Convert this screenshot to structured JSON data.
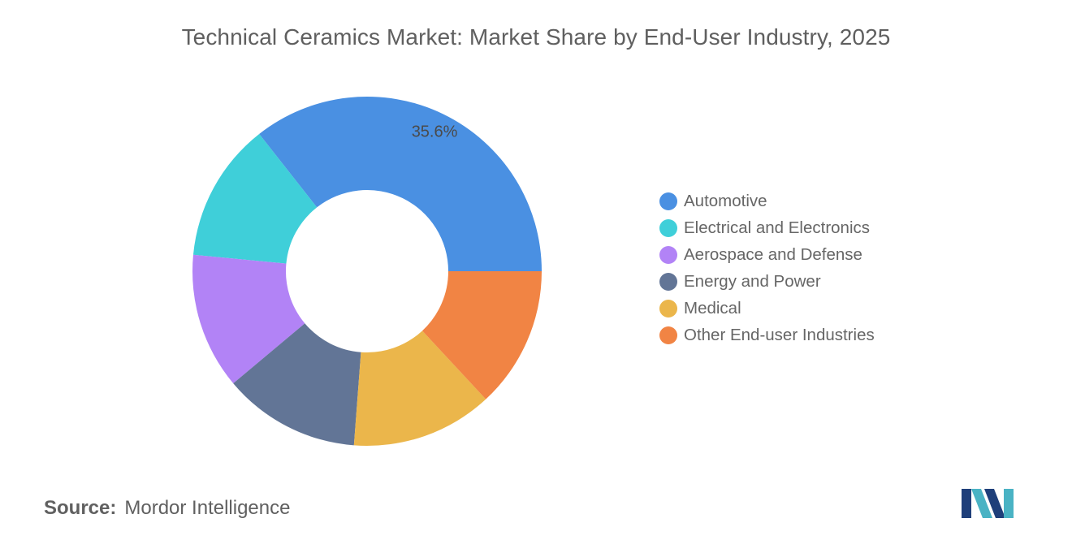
{
  "chart_data": {
    "type": "pie",
    "title": "Technical Ceramics Market: Market Share by End-User Industry, 2025",
    "donut": true,
    "legend_position": "right",
    "series": [
      {
        "name": "Automotive",
        "value": 35.6,
        "color": "#4a90e2",
        "label": "35.6%"
      },
      {
        "name": "Electrical and Electronics",
        "value": 12.9,
        "color": "#3fcfd9",
        "label": ""
      },
      {
        "name": "Aerospace and Defense",
        "value": 12.6,
        "color": "#b283f6",
        "label": ""
      },
      {
        "name": "Energy and Power",
        "value": 12.7,
        "color": "#627596",
        "label": ""
      },
      {
        "name": "Medical",
        "value": 13.1,
        "color": "#ebb64b",
        "label": ""
      },
      {
        "name": "Other End-user Industries",
        "value": 13.1,
        "color": "#f18444",
        "label": ""
      }
    ]
  },
  "source": {
    "label": "Source:",
    "value": "Mordor Intelligence"
  },
  "logo": {
    "icon": "mordor-intelligence-logo-icon",
    "colors": [
      "#1f3f7a",
      "#4ab3c4"
    ]
  }
}
